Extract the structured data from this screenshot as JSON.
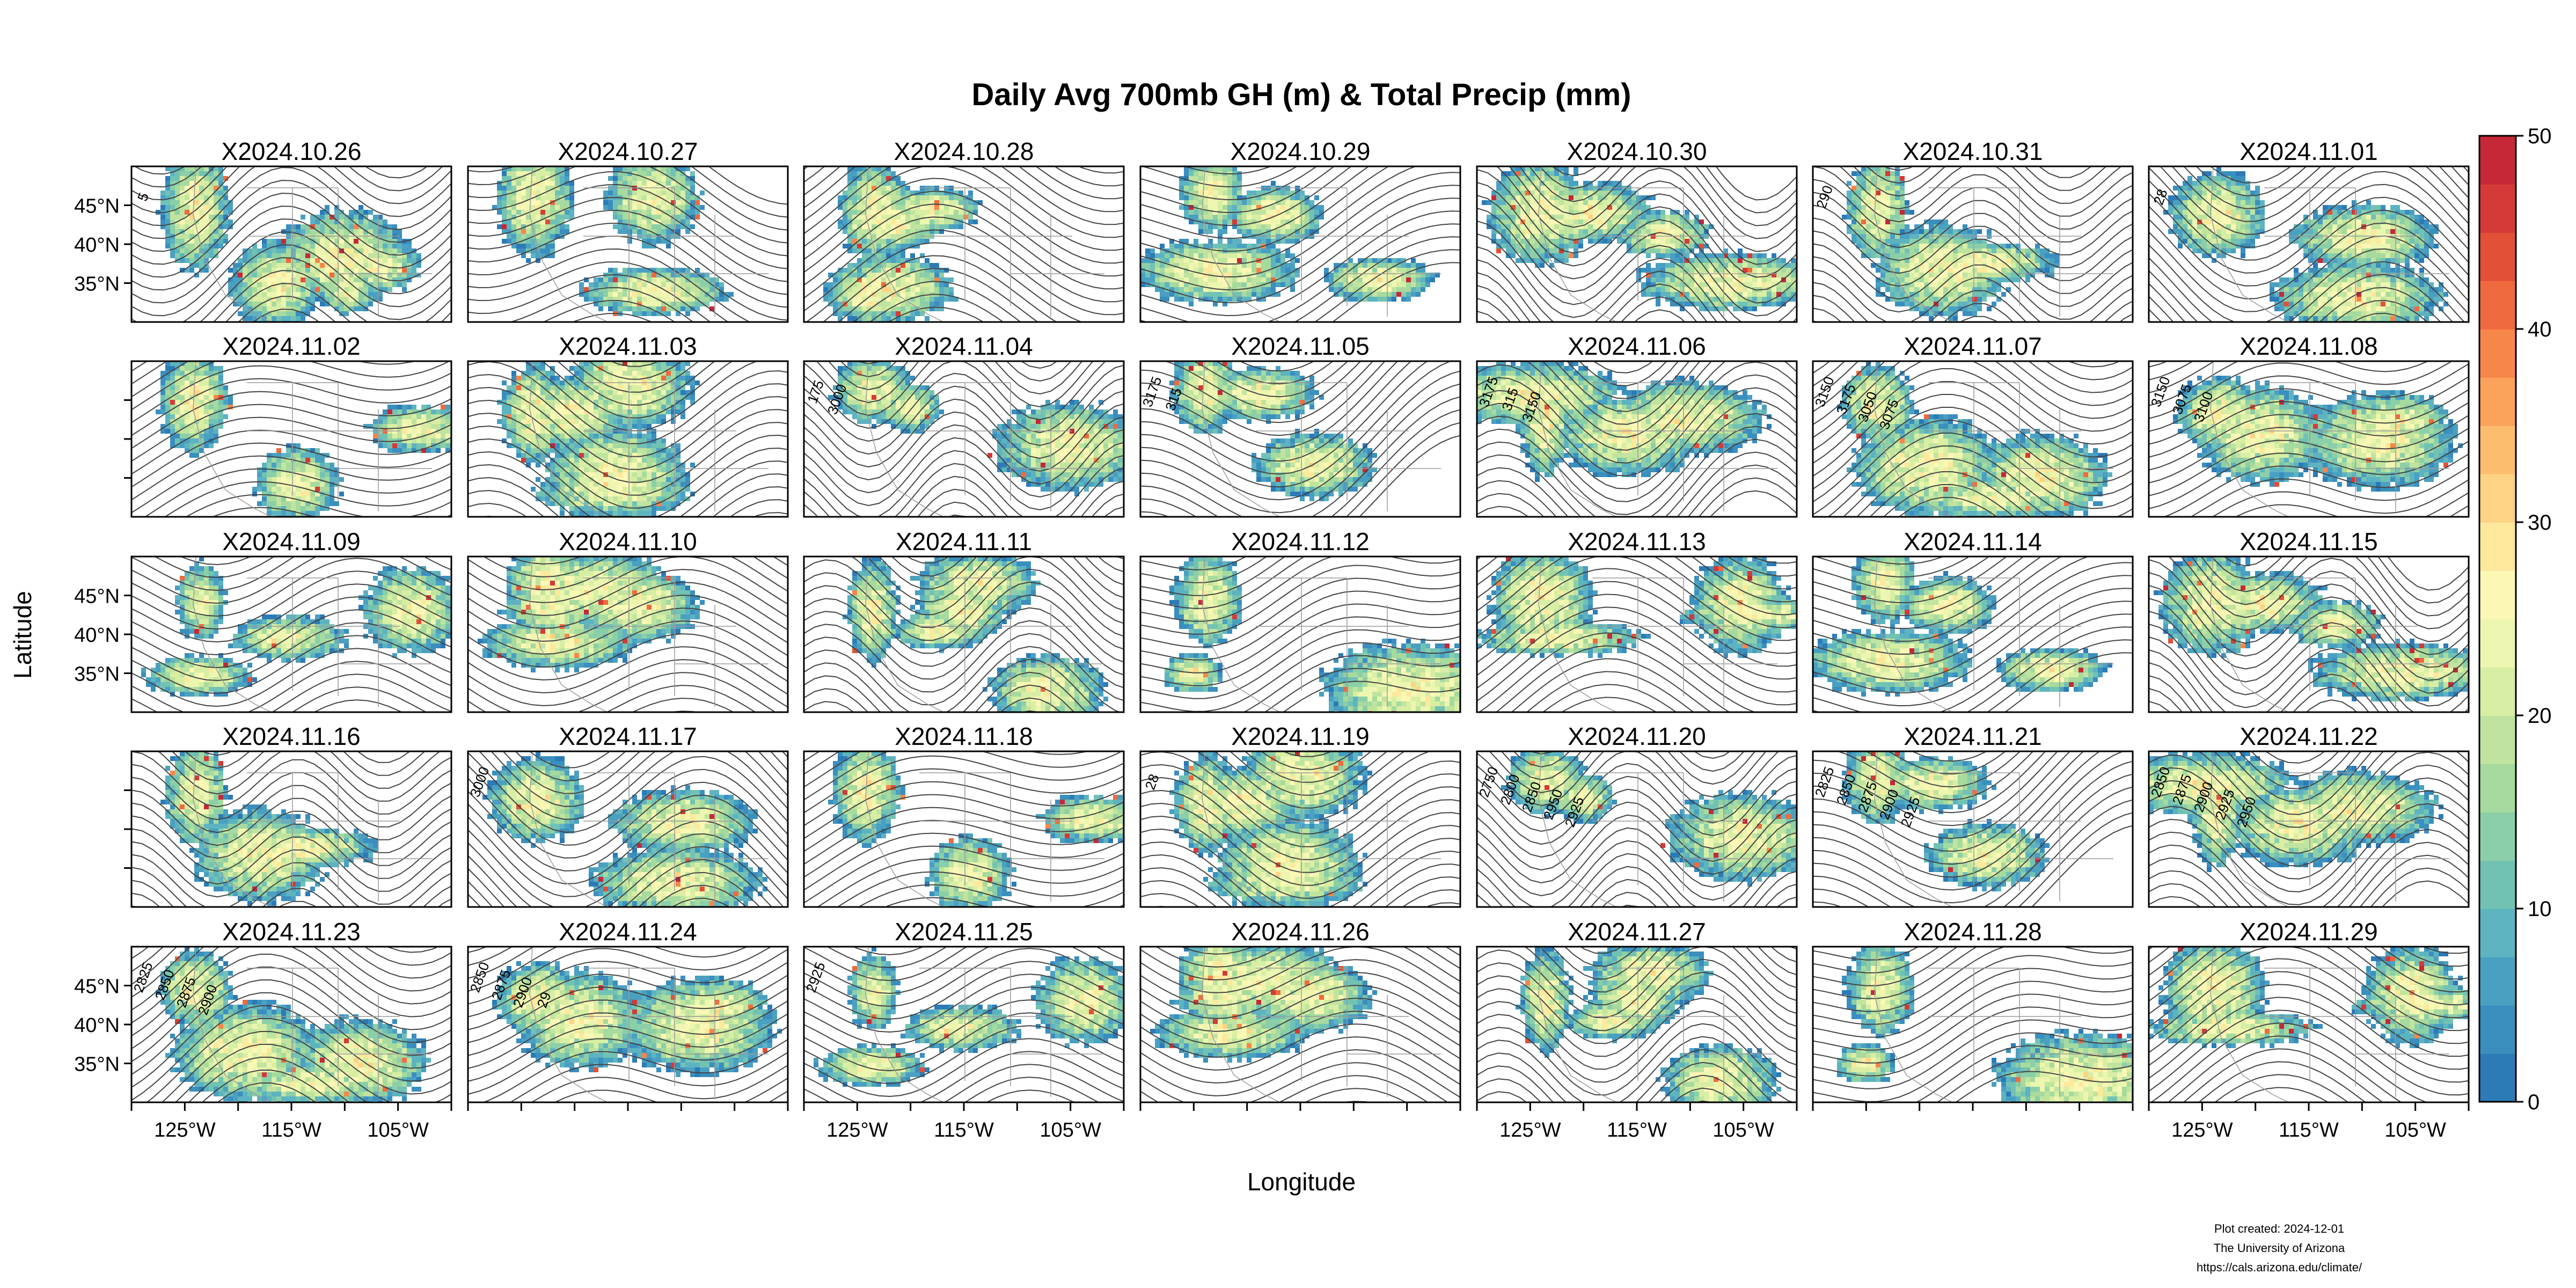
{
  "title": "Daily Avg 700mb GH (m) & Total Precip (mm)",
  "xlabel": "Longitude",
  "ylabel": "Latitude",
  "footer": {
    "created": "Plot created: 2024-12-01",
    "org": "The University of Arizona",
    "url": "https://cals.arizona.edu/climate/"
  },
  "chart_data": {
    "type": "heatmap",
    "layout": {
      "rows": 5,
      "cols": 7
    },
    "panels": [
      "X2024.10.26",
      "X2024.10.27",
      "X2024.10.28",
      "X2024.10.29",
      "X2024.10.30",
      "X2024.10.31",
      "X2024.11.01",
      "X2024.11.02",
      "X2024.11.03",
      "X2024.11.04",
      "X2024.11.05",
      "X2024.11.06",
      "X2024.11.07",
      "X2024.11.08",
      "X2024.11.09",
      "X2024.11.10",
      "X2024.11.11",
      "X2024.11.12",
      "X2024.11.13",
      "X2024.11.14",
      "X2024.11.15",
      "X2024.11.16",
      "X2024.11.17",
      "X2024.11.18",
      "X2024.11.19",
      "X2024.11.20",
      "X2024.11.21",
      "X2024.11.22",
      "X2024.11.23",
      "X2024.11.24",
      "X2024.11.25",
      "X2024.11.26",
      "X2024.11.27",
      "X2024.11.28",
      "X2024.11.29"
    ],
    "x_ticks": [
      "125°W",
      "115°W",
      "105°W"
    ],
    "y_ticks": [
      "45°N",
      "40°N",
      "35°N"
    ],
    "x_tick_values": [
      -125,
      -115,
      -105
    ],
    "y_tick_values": [
      45,
      40,
      35
    ],
    "xlim": [
      -130,
      -100
    ],
    "ylim": [
      30,
      50
    ],
    "colorbar": {
      "ticks": [
        "0",
        "10",
        "20",
        "30",
        "40",
        "50"
      ],
      "range": [
        0,
        50
      ],
      "colors": [
        "#2c7bb6",
        "#3a8fbe",
        "#4aa0c1",
        "#5db3c0",
        "#72c2b4",
        "#8bcfa8",
        "#a6da9e",
        "#c0e49f",
        "#d8eea4",
        "#ecf6b0",
        "#fbf7b5",
        "#fde89c",
        "#fdd385",
        "#fdbd6f",
        "#fba25b",
        "#f7864a",
        "#ef6a3e",
        "#e25037",
        "#d43a37",
        "#c62838"
      ]
    },
    "contour_labels": [
      {
        "panel": 0,
        "text": "5"
      },
      {
        "panel": 5,
        "text": "290"
      },
      {
        "panel": 6,
        "text": "28"
      },
      {
        "panel": 9,
        "text": "175"
      },
      {
        "panel": 9,
        "text": "3000"
      },
      {
        "panel": 10,
        "text": "3175"
      },
      {
        "panel": 10,
        "text": "315"
      },
      {
        "panel": 11,
        "text": "3175"
      },
      {
        "panel": 11,
        "text": "315"
      },
      {
        "panel": 11,
        "text": "3150"
      },
      {
        "panel": 12,
        "text": "3150"
      },
      {
        "panel": 12,
        "text": "3175"
      },
      {
        "panel": 12,
        "text": "3050"
      },
      {
        "panel": 12,
        "text": "3075"
      },
      {
        "panel": 13,
        "text": "3150"
      },
      {
        "panel": 13,
        "text": "3075"
      },
      {
        "panel": 13,
        "text": "3100"
      },
      {
        "panel": 22,
        "text": "3000"
      },
      {
        "panel": 24,
        "text": "28"
      },
      {
        "panel": 25,
        "text": "2750"
      },
      {
        "panel": 25,
        "text": "2800"
      },
      {
        "panel": 25,
        "text": "2850"
      },
      {
        "panel": 25,
        "text": "2950"
      },
      {
        "panel": 25,
        "text": "2925"
      },
      {
        "panel": 26,
        "text": "2825"
      },
      {
        "panel": 26,
        "text": "2850"
      },
      {
        "panel": 26,
        "text": "2875"
      },
      {
        "panel": 26,
        "text": "2900"
      },
      {
        "panel": 26,
        "text": "2925"
      },
      {
        "panel": 27,
        "text": "2850"
      },
      {
        "panel": 27,
        "text": "2875"
      },
      {
        "panel": 27,
        "text": "2900"
      },
      {
        "panel": 27,
        "text": "2925"
      },
      {
        "panel": 27,
        "text": "2950"
      },
      {
        "panel": 28,
        "text": "2825"
      },
      {
        "panel": 28,
        "text": "2850"
      },
      {
        "panel": 28,
        "text": "2875"
      },
      {
        "panel": 28,
        "text": "2900"
      },
      {
        "panel": 29,
        "text": "2850"
      },
      {
        "panel": 29,
        "text": "2875"
      },
      {
        "panel": 29,
        "text": "2900"
      },
      {
        "panel": 29,
        "text": "29"
      },
      {
        "panel": 30,
        "text": "2925"
      }
    ]
  }
}
